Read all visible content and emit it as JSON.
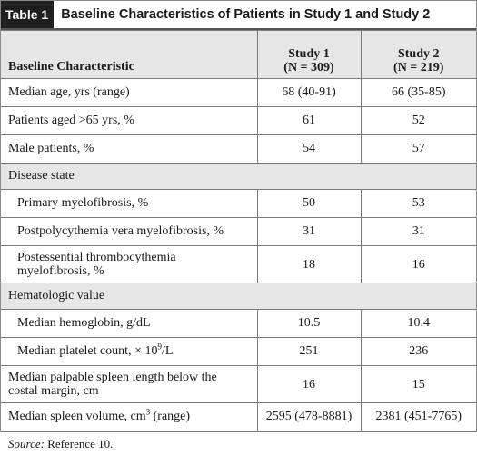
{
  "table_tag": "Table 1",
  "title": "Baseline Characteristics of Patients in Study 1 and Study 2",
  "header": {
    "col1": "Baseline Characteristic",
    "study1_name": "Study 1",
    "study1_n": "(N = 309)",
    "study2_name": "Study 2",
    "study2_n": "(N = 219)"
  },
  "rows": [
    {
      "label": "Median age, yrs (range)",
      "s1": "68 (40-91)",
      "s2": "66 (35-85)"
    },
    {
      "label": "Patients aged >65 yrs, %",
      "s1": "61",
      "s2": "52"
    },
    {
      "label": "Male patients, %",
      "s1": "54",
      "s2": "57"
    },
    {
      "section": "Disease state"
    },
    {
      "label": "Primary myelofibrosis, %",
      "s1": "50",
      "s2": "53"
    },
    {
      "label": "Postpolycythemia vera myelofibrosis, %",
      "s1": "31",
      "s2": "31"
    },
    {
      "label": "Postessential thrombocythemia myelofibrosis, %",
      "s1": "18",
      "s2": "16"
    },
    {
      "section": "Hematologic value"
    },
    {
      "label": "Median hemoglobin, g/dL",
      "s1": "10.5",
      "s2": "10.4"
    },
    {
      "label_pre": "Median platelet count, × 10",
      "label_sup": "9",
      "label_post": "/L",
      "s1": "251",
      "s2": "236"
    },
    {
      "label": "Median palpable spleen length below the costal margin, cm",
      "s1": "16",
      "s2": "15"
    },
    {
      "label_pre": "Median spleen volume, cm",
      "label_sup": "3",
      "label_post": " (range)",
      "s1": "2595 (478-8881)",
      "s2": "2381 (451-7765)"
    }
  ],
  "footer": {
    "source_label": "Source:",
    "source_text": " Reference 10."
  }
}
